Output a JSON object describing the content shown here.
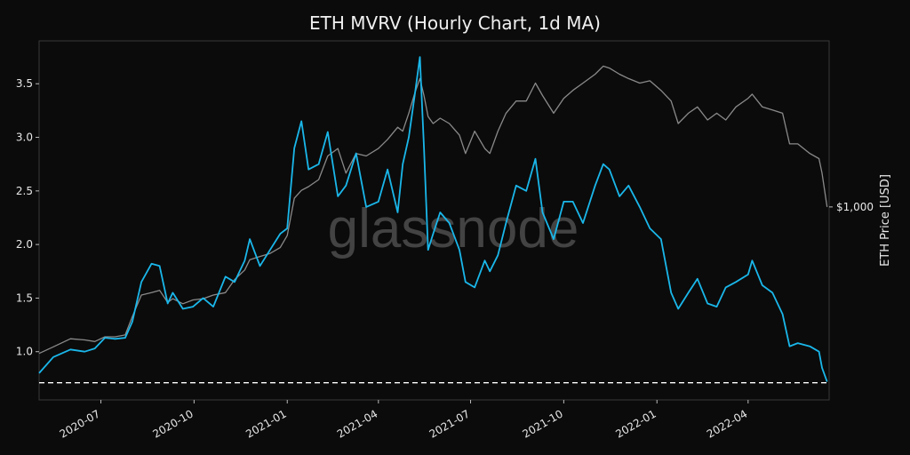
{
  "title": "ETH MVRV (Hourly Chart, 1d MA)",
  "watermark": "glassnode",
  "colors": {
    "background": "#0b0b0b",
    "mvrv_line": "#1ab7ea",
    "price_line": "#8a8a8a",
    "threshold_line": "#ffffff",
    "text": "#e8e8e8",
    "frame": "#3a3a3a"
  },
  "chart_data": {
    "type": "line",
    "title": "ETH MVRV (Hourly Chart, 1d MA)",
    "xlabel": "",
    "ylabel_left": "",
    "ylabel_right": "ETH Price [USD]",
    "x_range": [
      "2020-05-01",
      "2022-06-20"
    ],
    "x_ticks": [
      "2020-07",
      "2020-10",
      "2021-01",
      "2021-04",
      "2021-07",
      "2021-10",
      "2022-01",
      "2022-04"
    ],
    "x_tick_dates": [
      "2020-07-01",
      "2020-10-01",
      "2021-01-01",
      "2021-04-01",
      "2021-07-01",
      "2021-10-01",
      "2022-01-01",
      "2022-04-01"
    ],
    "ylim": [
      0.55,
      3.9
    ],
    "y_ticks": [
      1.0,
      1.5,
      2.0,
      2.5,
      3.0,
      3.5
    ],
    "y_tick_labels": [
      "1.0",
      "1.5",
      "2.0",
      "2.5",
      "3.0",
      "3.5"
    ],
    "right_axis": {
      "scale": "log",
      "range": [
        120,
        6200
      ],
      "tick_values": [
        1000
      ],
      "tick_labels": [
        "$1,000"
      ]
    },
    "grid": false,
    "threshold": {
      "y": 0.71,
      "style": "dashed"
    },
    "series": [
      {
        "axis": "left",
        "x": [
          "2020-05-01",
          "2020-05-15",
          "2020-06-01",
          "2020-06-15",
          "2020-06-25",
          "2020-07-05",
          "2020-07-15",
          "2020-07-25",
          "2020-08-01",
          "2020-08-10",
          "2020-08-20",
          "2020-08-28",
          "2020-09-05",
          "2020-09-10",
          "2020-09-20",
          "2020-09-30",
          "2020-10-10",
          "2020-10-20",
          "2020-11-01",
          "2020-11-10",
          "2020-11-20",
          "2020-11-25",
          "2020-12-05",
          "2020-12-15",
          "2020-12-25",
          "2021-01-01",
          "2021-01-08",
          "2021-01-15",
          "2021-01-22",
          "2021-02-01",
          "2021-02-10",
          "2021-02-20",
          "2021-02-28",
          "2021-03-10",
          "2021-03-20",
          "2021-04-01",
          "2021-04-10",
          "2021-04-20",
          "2021-04-25",
          "2021-05-01",
          "2021-05-07",
          "2021-05-12",
          "2021-05-16",
          "2021-05-20",
          "2021-05-25",
          "2021-06-01",
          "2021-06-10",
          "2021-06-20",
          "2021-06-26",
          "2021-07-05",
          "2021-07-15",
          "2021-07-20",
          "2021-07-28",
          "2021-08-05",
          "2021-08-15",
          "2021-08-25",
          "2021-09-03",
          "2021-09-10",
          "2021-09-21",
          "2021-10-01",
          "2021-10-10",
          "2021-10-20",
          "2021-11-01",
          "2021-11-09",
          "2021-11-15",
          "2021-11-25",
          "2021-12-04",
          "2021-12-15",
          "2021-12-25",
          "2022-01-05",
          "2022-01-15",
          "2022-01-22",
          "2022-02-01",
          "2022-02-10",
          "2022-02-20",
          "2022-03-01",
          "2022-03-10",
          "2022-03-20",
          "2022-04-01",
          "2022-04-05",
          "2022-04-15",
          "2022-04-25",
          "2022-05-05",
          "2022-05-12",
          "2022-05-20",
          "2022-06-01",
          "2022-06-10",
          "2022-06-13",
          "2022-06-18"
        ],
        "values": [
          0.8,
          0.95,
          1.02,
          1.0,
          1.03,
          1.13,
          1.12,
          1.13,
          1.28,
          1.65,
          1.82,
          1.8,
          1.45,
          1.55,
          1.4,
          1.42,
          1.5,
          1.42,
          1.7,
          1.65,
          1.85,
          2.05,
          1.8,
          1.95,
          2.1,
          2.15,
          2.9,
          3.15,
          2.7,
          2.75,
          3.05,
          2.45,
          2.55,
          2.85,
          2.35,
          2.4,
          2.7,
          2.3,
          2.75,
          3.0,
          3.4,
          3.75,
          2.9,
          1.95,
          2.1,
          2.3,
          2.2,
          1.95,
          1.65,
          1.6,
          1.85,
          1.75,
          1.9,
          2.2,
          2.55,
          2.5,
          2.8,
          2.3,
          2.05,
          2.4,
          2.4,
          2.2,
          2.55,
          2.75,
          2.7,
          2.45,
          2.55,
          2.35,
          2.15,
          2.05,
          1.55,
          1.4,
          1.55,
          1.68,
          1.45,
          1.42,
          1.6,
          1.65,
          1.72,
          1.85,
          1.62,
          1.55,
          1.35,
          1.05,
          1.08,
          1.05,
          1.0,
          0.85,
          0.72
        ]
      },
      {
        "axis": "right",
        "x": [
          "2020-05-01",
          "2020-05-15",
          "2020-06-01",
          "2020-06-15",
          "2020-06-25",
          "2020-07-05",
          "2020-07-15",
          "2020-07-25",
          "2020-08-01",
          "2020-08-10",
          "2020-08-20",
          "2020-08-28",
          "2020-09-05",
          "2020-09-10",
          "2020-09-20",
          "2020-09-30",
          "2020-10-10",
          "2020-10-20",
          "2020-11-01",
          "2020-11-10",
          "2020-11-20",
          "2020-11-25",
          "2020-12-05",
          "2020-12-15",
          "2020-12-25",
          "2021-01-01",
          "2021-01-08",
          "2021-01-15",
          "2021-01-22",
          "2021-02-01",
          "2021-02-10",
          "2021-02-20",
          "2021-02-28",
          "2021-03-10",
          "2021-03-20",
          "2021-04-01",
          "2021-04-10",
          "2021-04-20",
          "2021-04-25",
          "2021-05-01",
          "2021-05-07",
          "2021-05-12",
          "2021-05-16",
          "2021-05-20",
          "2021-05-25",
          "2021-06-01",
          "2021-06-10",
          "2021-06-20",
          "2021-06-26",
          "2021-07-05",
          "2021-07-15",
          "2021-07-20",
          "2021-07-28",
          "2021-08-05",
          "2021-08-15",
          "2021-08-25",
          "2021-09-03",
          "2021-09-10",
          "2021-09-21",
          "2021-10-01",
          "2021-10-10",
          "2021-10-20",
          "2021-11-01",
          "2021-11-09",
          "2021-11-15",
          "2021-11-25",
          "2021-12-04",
          "2021-12-15",
          "2021-12-25",
          "2022-01-05",
          "2022-01-15",
          "2022-01-22",
          "2022-02-01",
          "2022-02-10",
          "2022-02-20",
          "2022-03-01",
          "2022-03-10",
          "2022-03-20",
          "2022-04-01",
          "2022-04-05",
          "2022-04-15",
          "2022-04-25",
          "2022-05-05",
          "2022-05-12",
          "2022-05-20",
          "2022-06-01",
          "2022-06-10",
          "2022-06-13",
          "2022-06-18"
        ],
        "values": [
          200,
          215,
          235,
          232,
          228,
          240,
          240,
          245,
          300,
          380,
          390,
          400,
          350,
          365,
          345,
          360,
          365,
          380,
          390,
          450,
          500,
          560,
          580,
          600,
          640,
          730,
          1100,
          1200,
          1250,
          1350,
          1750,
          1900,
          1450,
          1800,
          1750,
          1900,
          2100,
          2400,
          2300,
          2800,
          3500,
          4100,
          3400,
          2700,
          2500,
          2650,
          2500,
          2200,
          1800,
          2300,
          1900,
          1800,
          2300,
          2800,
          3200,
          3200,
          3900,
          3400,
          2800,
          3300,
          3600,
          3900,
          4300,
          4700,
          4600,
          4300,
          4100,
          3900,
          4000,
          3600,
          3200,
          2500,
          2800,
          3000,
          2600,
          2800,
          2600,
          3000,
          3300,
          3450,
          3000,
          2900,
          2800,
          2000,
          2000,
          1800,
          1700,
          1450,
          1000
        ]
      }
    ]
  }
}
